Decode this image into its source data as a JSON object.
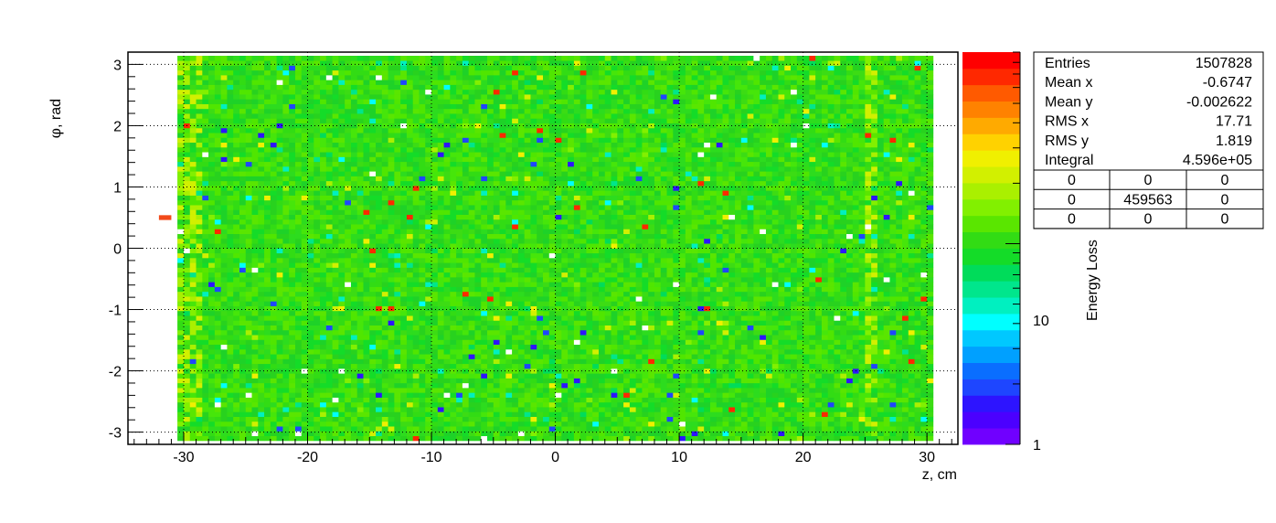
{
  "chart_data": {
    "type": "heatmap",
    "x_axis": {
      "label": "z, cm",
      "range": [
        -34.5,
        32.5
      ],
      "ticks": [
        -30,
        -20,
        -10,
        0,
        10,
        20,
        30
      ],
      "tick_labels": [
        "-30",
        "-20",
        "-10",
        "0",
        "10",
        "20",
        "30"
      ]
    },
    "y_axis": {
      "label": "φ, rad",
      "label_symbol": "φ",
      "label_suffix": ", rad",
      "range": [
        -3.2,
        3.2
      ],
      "ticks": [
        -3,
        -2,
        -1,
        0,
        1,
        2,
        3
      ],
      "tick_labels": [
        "-3",
        "-2",
        "-1",
        "0",
        "1",
        "2",
        "3"
      ]
    },
    "z_axis": {
      "label": "Energy Loss",
      "log_scale": true,
      "range": [
        1,
        90
      ],
      "tick_labels": [
        "1",
        "10"
      ]
    },
    "grid": true,
    "filled_region": {
      "x_range": [
        -30.5,
        30.5
      ],
      "y_range": [
        -3.14,
        3.14
      ]
    },
    "isolated_cells": [
      {
        "x": -31.5,
        "y": 0.5,
        "color": "#f24a1a"
      }
    ],
    "stats_box": {
      "rows": [
        {
          "label": "Entries",
          "value": "1507828"
        },
        {
          "label": "Mean x",
          "value": "-0.6747"
        },
        {
          "label": "Mean y",
          "value": "-0.002622"
        },
        {
          "label": "RMS x",
          "value": "17.71"
        },
        {
          "label": "RMS y",
          "value": "1.819"
        },
        {
          "label": "Integral",
          "value": "4.596e+05"
        }
      ],
      "grid": [
        [
          "0",
          "0",
          "0"
        ],
        [
          "0",
          "459563",
          "0"
        ],
        [
          "0",
          "0",
          "0"
        ]
      ]
    },
    "palette": [
      "#7000ff",
      "#4b00ff",
      "#2d14ff",
      "#1e46ff",
      "#0a6eff",
      "#00a0ff",
      "#00c8ff",
      "#00ffff",
      "#00f0c0",
      "#00e68c",
      "#00dc5a",
      "#14dc28",
      "#32dc14",
      "#5ae600",
      "#82f000",
      "#aaf000",
      "#d2f000",
      "#f0f000",
      "#ffd200",
      "#ffaa00",
      "#ff8200",
      "#ff5a00",
      "#ff2800",
      "#ff0000"
    ]
  }
}
